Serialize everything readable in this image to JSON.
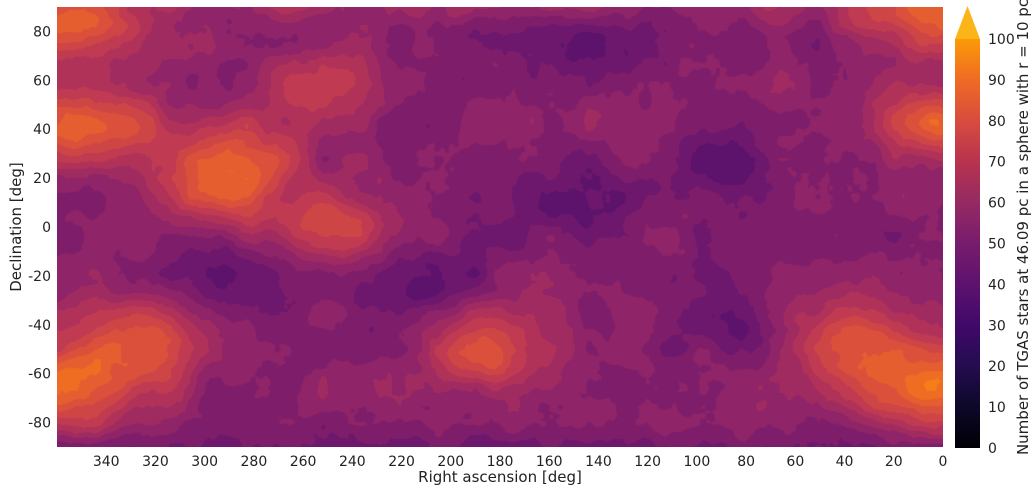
{
  "chart_data": {
    "type": "heatmap",
    "title": "",
    "xlabel": "Right ascension [deg]",
    "ylabel": "Declination [deg]",
    "x_reversed": true,
    "xlim": [
      0,
      360
    ],
    "ylim": [
      -90,
      90
    ],
    "x_ticks": [
      340,
      320,
      300,
      280,
      260,
      240,
      220,
      200,
      180,
      160,
      140,
      120,
      100,
      80,
      60,
      40,
      20,
      0
    ],
    "y_ticks": [
      80,
      60,
      40,
      20,
      0,
      -20,
      -40,
      -60,
      -80
    ],
    "colormap": "inferno",
    "colorbar": {
      "label": "Number of TGAS stars at 46.09 pc in a sphere with r = 10 pc",
      "range": [
        0,
        100
      ],
      "ticks": [
        0,
        10,
        20,
        30,
        40,
        50,
        60,
        70,
        80,
        90,
        100
      ],
      "extend": "max",
      "extend_color": "#fcb519",
      "levels": 20
    },
    "visible_value_range": [
      28,
      82
    ],
    "hotspots": [
      {
        "ra": 287,
        "dec": 27,
        "value": 72
      },
      {
        "ra": 300,
        "dec": 14,
        "value": 66
      },
      {
        "ra": 250,
        "dec": 0,
        "value": 70
      },
      {
        "ra": 337,
        "dec": 40,
        "value": 68
      },
      {
        "ra": 255,
        "dec": 58,
        "value": 62
      },
      {
        "ra": 325,
        "dec": -47,
        "value": 73
      },
      {
        "ra": 347,
        "dec": -65,
        "value": 70
      },
      {
        "ra": 185,
        "dec": -52,
        "value": 74
      },
      {
        "ra": 38,
        "dec": -44,
        "value": 70
      },
      {
        "ra": 20,
        "dec": -65,
        "value": 72
      },
      {
        "ra": 5,
        "dec": 42,
        "value": 68
      },
      {
        "ra": 10,
        "dec": 84,
        "value": 66
      },
      {
        "ra": 345,
        "dec": 85,
        "value": 64
      }
    ],
    "coldspots": [
      {
        "ra": 152,
        "dec": 10,
        "value": 30
      },
      {
        "ra": 215,
        "dec": -22,
        "value": 32
      },
      {
        "ra": 280,
        "dec": -18,
        "value": 33
      },
      {
        "ra": 88,
        "dec": -40,
        "value": 34
      },
      {
        "ra": 90,
        "dec": 25,
        "value": 35
      },
      {
        "ra": 135,
        "dec": 72,
        "value": 36
      },
      {
        "ra": 170,
        "dec": 84,
        "value": 40
      }
    ]
  }
}
